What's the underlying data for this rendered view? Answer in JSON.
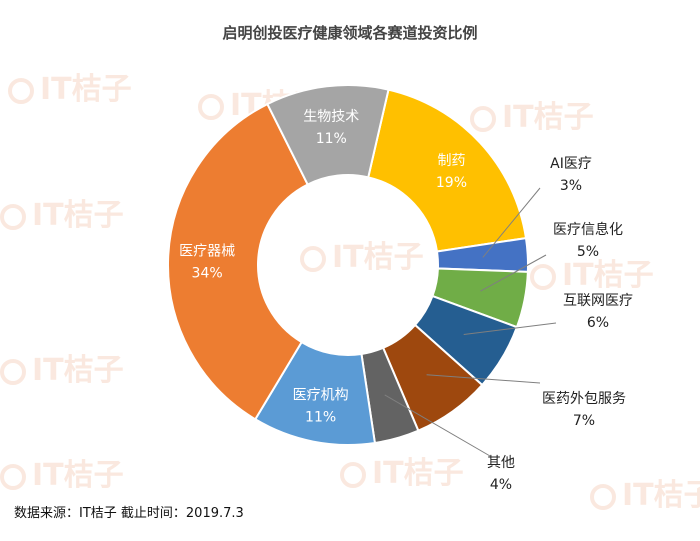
{
  "watermark": "IT桔子",
  "footer": {
    "source": "数据来源：IT桔子  截止时间：2019.7.3"
  },
  "chart_data": {
    "type": "pie",
    "title": "启明创投医疗健康领域各赛道投资比例",
    "donut": true,
    "slices": [
      {
        "label": "制药",
        "pct_label": "19%",
        "value": 19,
        "color": "#ffc000"
      },
      {
        "label": "AI医疗",
        "pct_label": "3%",
        "value": 3,
        "color": "#4472c4"
      },
      {
        "label": "医疗信息化",
        "pct_label": "5%",
        "value": 5,
        "color": "#70ad47"
      },
      {
        "label": "互联网医疗",
        "pct_label": "6%",
        "value": 6,
        "color": "#255e91"
      },
      {
        "label": "医药外包服务",
        "pct_label": "7%",
        "value": 7,
        "color": "#9e480e"
      },
      {
        "label": "其他",
        "pct_label": "4%",
        "value": 4,
        "color": "#636363"
      },
      {
        "label": "医疗机构",
        "pct_label": "11%",
        "value": 11,
        "color": "#5b9bd5"
      },
      {
        "label": "医疗器械",
        "pct_label": "34%",
        "value": 34,
        "color": "#ed7d31"
      },
      {
        "label": "生物技术",
        "pct_label": "11%",
        "value": 11,
        "color": "#a5a5a5"
      }
    ]
  }
}
